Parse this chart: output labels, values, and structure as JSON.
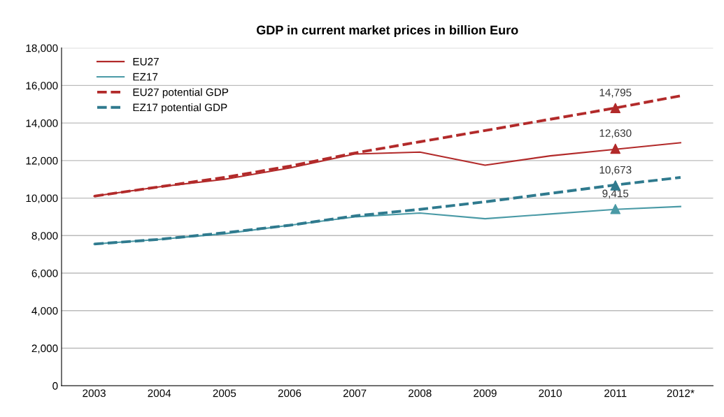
{
  "chart_data": {
    "type": "line",
    "title": "GDP in current market prices in billion Euro",
    "categories": [
      "2003",
      "2004",
      "2005",
      "2006",
      "2007",
      "2008",
      "2009",
      "2010",
      "2011",
      "2012*"
    ],
    "series": [
      {
        "name": "EU27",
        "color": "#b22a2a",
        "line_style": "solid",
        "values": [
          10100,
          10600,
          11000,
          11600,
          12350,
          12450,
          11750,
          12250,
          12600,
          12950
        ]
      },
      {
        "name": "EZ17",
        "color": "#4a9aa6",
        "line_style": "solid",
        "values": [
          7550,
          7800,
          8100,
          8550,
          9000,
          9200,
          8900,
          9150,
          9400,
          9550
        ]
      },
      {
        "name": "EU27 potential GDP",
        "color": "#b22a2a",
        "line_style": "dashed",
        "values": [
          10100,
          10600,
          11100,
          11700,
          12400,
          13000,
          13600,
          14200,
          14800,
          15450
        ]
      },
      {
        "name": "EZ17 potential GDP",
        "color": "#2f7a8e",
        "line_style": "dashed",
        "values": [
          7550,
          7800,
          8150,
          8550,
          9050,
          9400,
          9800,
          10250,
          10700,
          11100
        ]
      },
      {
        "type": "scatter",
        "marker": "triangle",
        "color": "#b22a2a",
        "values": [
          null,
          null,
          null,
          null,
          null,
          null,
          null,
          null,
          12630,
          null
        ],
        "value_labels": [
          null,
          null,
          null,
          null,
          null,
          null,
          null,
          null,
          "12,630",
          null
        ]
      },
      {
        "type": "scatter",
        "marker": "triangle",
        "color": "#4a9aa6",
        "values": [
          null,
          null,
          null,
          null,
          null,
          null,
          null,
          null,
          9415,
          null
        ],
        "value_labels": [
          null,
          null,
          null,
          null,
          null,
          null,
          null,
          null,
          "9,415",
          null
        ]
      },
      {
        "type": "scatter",
        "marker": "triangle",
        "color": "#b22a2a",
        "values": [
          null,
          null,
          null,
          null,
          null,
          null,
          null,
          null,
          14795,
          null
        ],
        "value_labels": [
          null,
          null,
          null,
          null,
          null,
          null,
          null,
          null,
          "14,795",
          null
        ]
      },
      {
        "type": "scatter",
        "marker": "triangle",
        "color": "#2f7a8e",
        "values": [
          null,
          null,
          null,
          null,
          null,
          null,
          null,
          null,
          10673,
          null
        ],
        "value_labels": [
          null,
          null,
          null,
          null,
          null,
          null,
          null,
          null,
          "10,673",
          null
        ]
      }
    ],
    "ylim": [
      0,
      18000
    ],
    "yticks": [
      {
        "value": 0,
        "label": "0"
      },
      {
        "value": 2000,
        "label": "2,000"
      },
      {
        "value": 4000,
        "label": "4,000"
      },
      {
        "value": 6000,
        "label": "6,000"
      },
      {
        "value": 8000,
        "label": "8,000"
      },
      {
        "value": 10000,
        "label": "10,000"
      },
      {
        "value": 12000,
        "label": "12,000"
      },
      {
        "value": 14000,
        "label": "14,000"
      },
      {
        "value": 16000,
        "label": "16,000"
      },
      {
        "value": 18000,
        "label": "18,000"
      }
    ],
    "grid": "y",
    "legend": "top left"
  }
}
